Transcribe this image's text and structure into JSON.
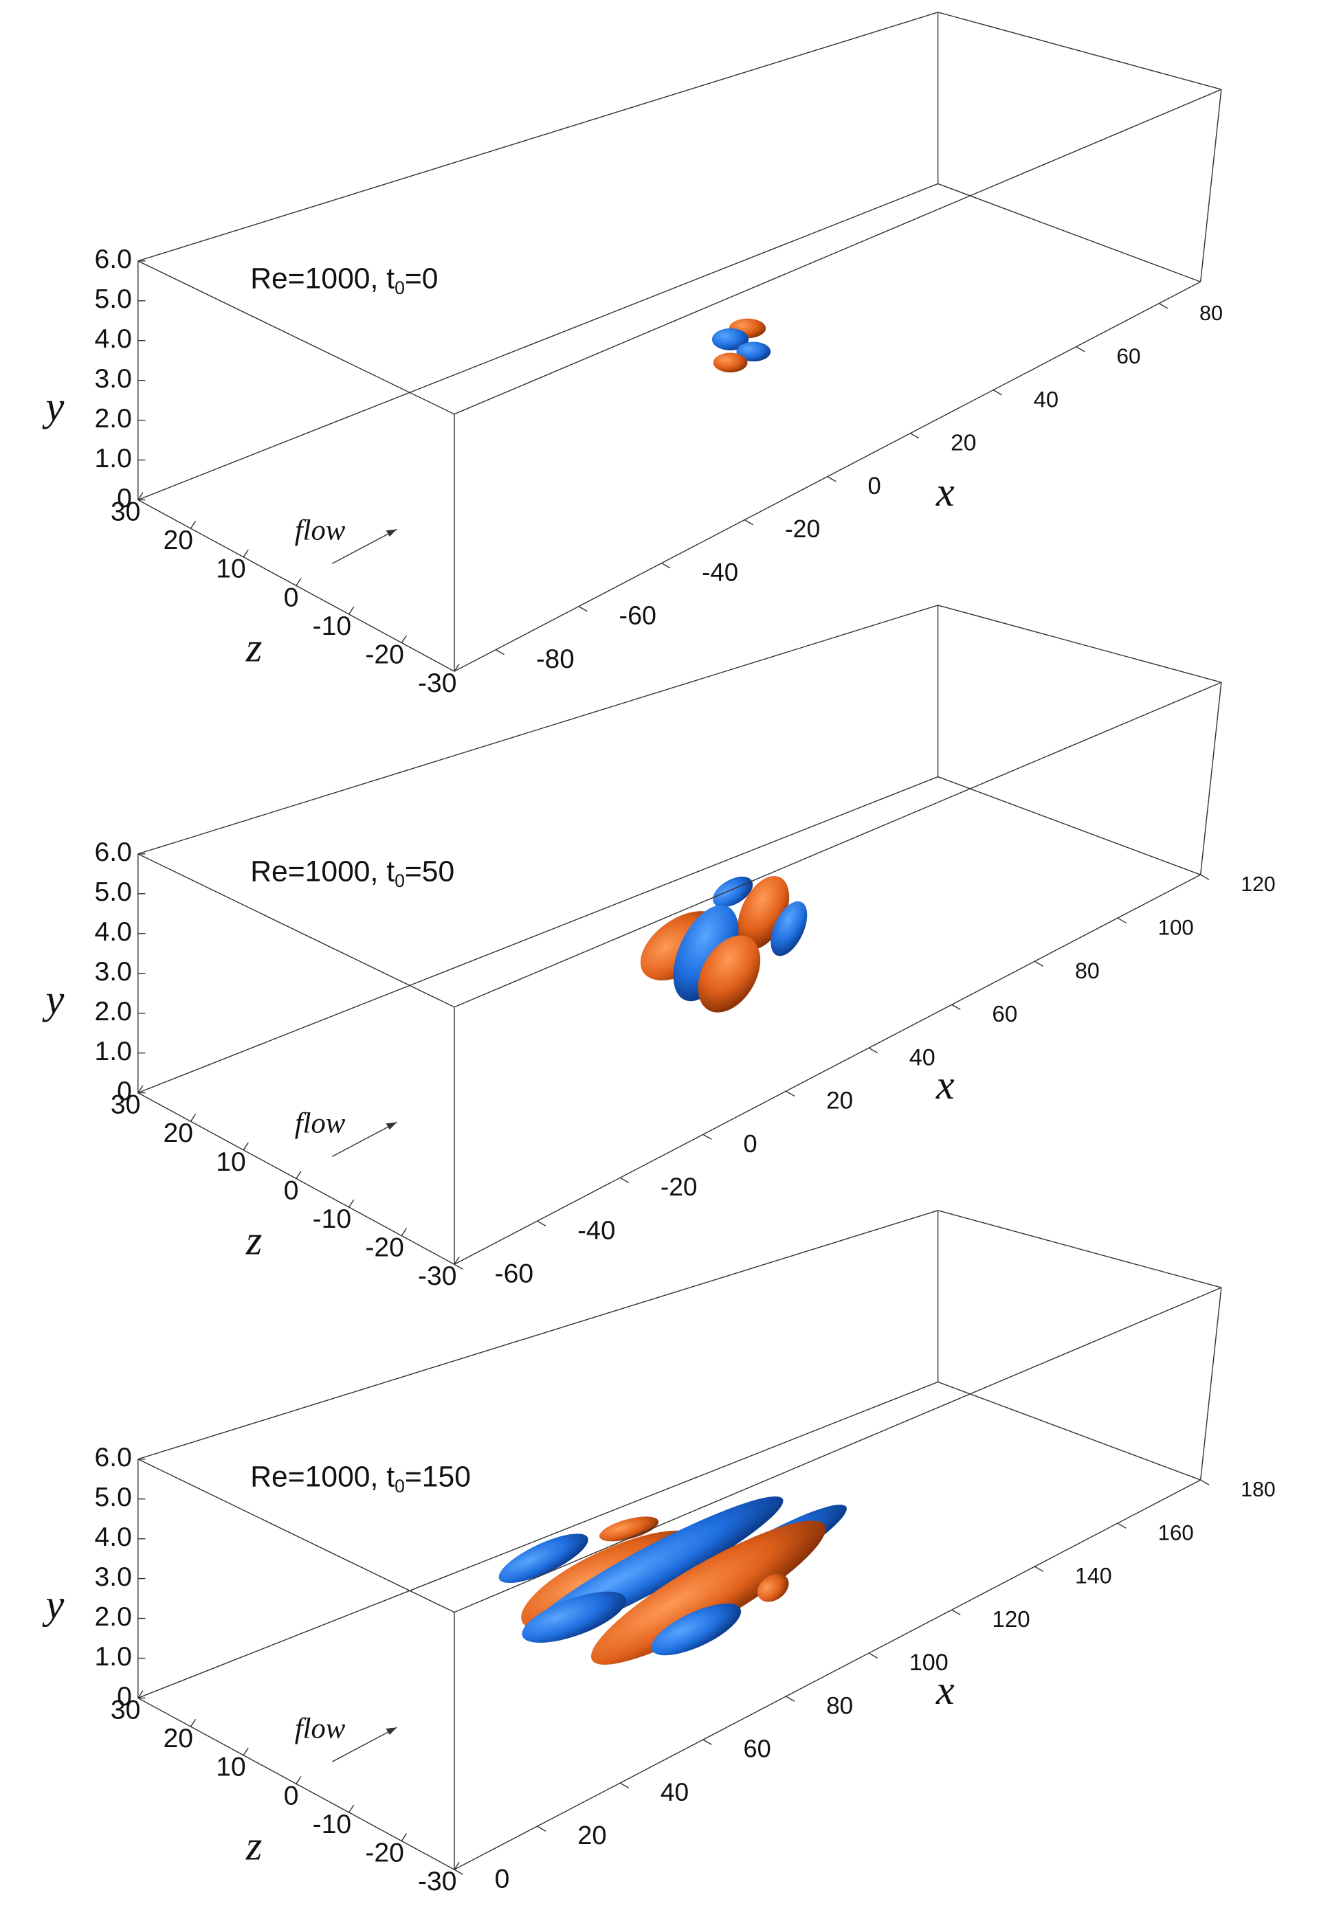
{
  "chart_data": [
    {
      "type": "isosurface",
      "annotation": [
        "Re=1000, t",
        "0",
        "=0"
      ],
      "flow_label": "flow",
      "xlabel": "x",
      "ylabel": "y",
      "zlabel": "z",
      "xlim": [
        -90,
        90
      ],
      "xticks": [
        -80,
        -60,
        -40,
        -20,
        0,
        20,
        40,
        60,
        80
      ],
      "ylim": [
        0,
        6
      ],
      "yticks": [
        0,
        {
          "value": 1,
          "label": "1.0"
        },
        {
          "value": 2,
          "label": "2.0"
        },
        {
          "value": 3,
          "label": "3.0"
        },
        {
          "value": 4,
          "label": "4.0"
        },
        {
          "value": 5,
          "label": "5.0"
        },
        {
          "value": 6,
          "label": "6.0"
        }
      ],
      "zlim": [
        30,
        -30
      ],
      "zticks": [
        30,
        20,
        10,
        0,
        -10,
        -20,
        -30
      ]
    },
    {
      "type": "isosurface",
      "annotation": [
        "Re=1000, t",
        "0",
        "=50"
      ],
      "flow_label": "flow",
      "xlabel": "x",
      "ylabel": "y",
      "zlabel": "z",
      "xlim": [
        -60,
        120
      ],
      "xticks": [
        -60,
        -40,
        -20,
        0,
        20,
        40,
        60,
        80,
        100,
        120
      ],
      "ylim": [
        0,
        6
      ],
      "yticks": [
        0,
        {
          "value": 1,
          "label": "1.0"
        },
        {
          "value": 2,
          "label": "2.0"
        },
        {
          "value": 3,
          "label": "3.0"
        },
        {
          "value": 4,
          "label": "4.0"
        },
        {
          "value": 5,
          "label": "5.0"
        },
        {
          "value": 6,
          "label": "6.0"
        }
      ],
      "zlim": [
        30,
        -30
      ],
      "zticks": [
        30,
        20,
        10,
        0,
        -10,
        -20,
        -30
      ]
    },
    {
      "type": "isosurface",
      "annotation": [
        "Re=1000, t",
        "0",
        "=150"
      ],
      "flow_label": "flow",
      "xlabel": "x",
      "ylabel": "y",
      "zlabel": "z",
      "xlim": [
        0,
        180
      ],
      "xticks": [
        0,
        20,
        40,
        60,
        80,
        100,
        120,
        140,
        160,
        180
      ],
      "ylim": [
        0,
        6
      ],
      "yticks": [
        0,
        {
          "value": 1,
          "label": "1.0"
        },
        {
          "value": 2,
          "label": "2.0"
        },
        {
          "value": 3,
          "label": "3.0"
        },
        {
          "value": 4,
          "label": "4.0"
        },
        {
          "value": 5,
          "label": "5.0"
        },
        {
          "value": 6,
          "label": "6.0"
        }
      ],
      "zlim": [
        30,
        -30
      ],
      "zticks": [
        30,
        20,
        10,
        0,
        -10,
        -20,
        -30
      ]
    }
  ]
}
